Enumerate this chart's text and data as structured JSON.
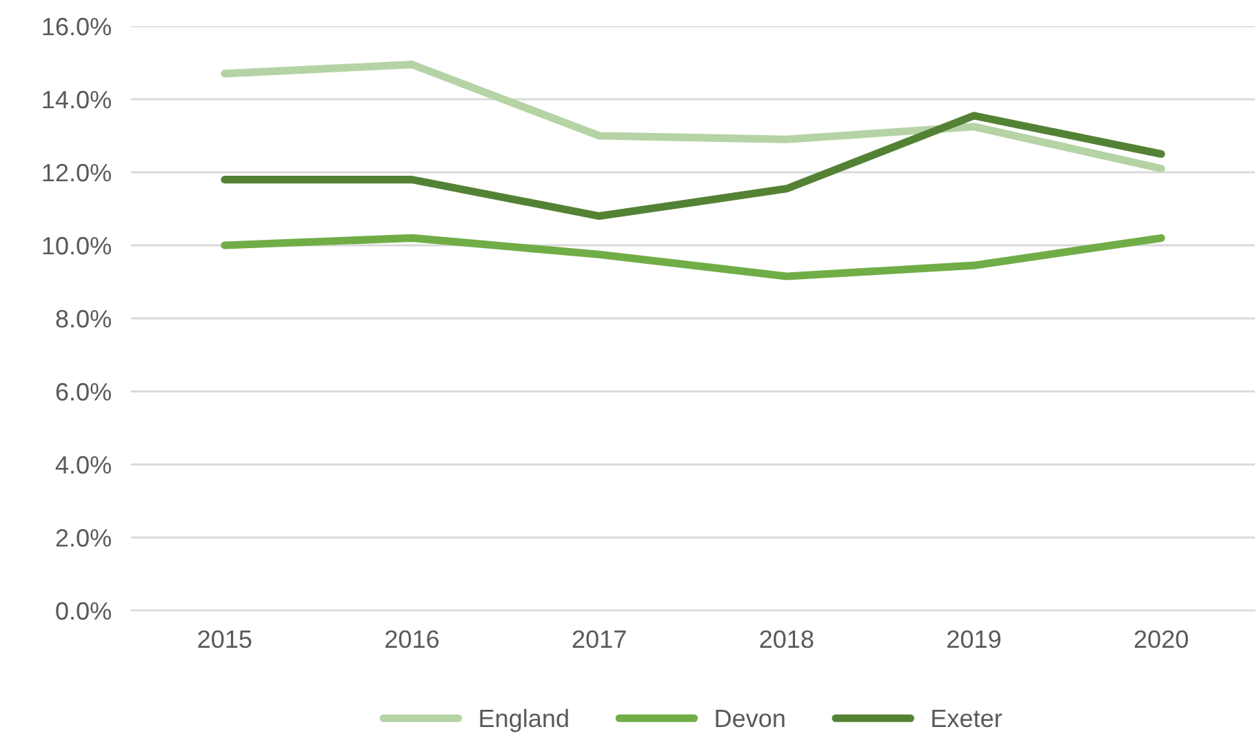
{
  "chart_data": {
    "type": "line",
    "categories": [
      "2015",
      "2016",
      "2017",
      "2018",
      "2019",
      "2020"
    ],
    "series": [
      {
        "name": "England",
        "color": "#b5d3a5",
        "values": [
          14.7,
          14.95,
          13.0,
          12.9,
          13.25,
          12.1
        ]
      },
      {
        "name": "Devon",
        "color": "#70ad47",
        "values": [
          10.0,
          10.2,
          9.75,
          9.15,
          9.45,
          10.2
        ]
      },
      {
        "name": "Exeter",
        "color": "#548235",
        "values": [
          11.8,
          11.8,
          10.8,
          11.55,
          13.55,
          12.5
        ]
      }
    ],
    "ylim": [
      0,
      16
    ],
    "yticks": [
      {
        "value": 0,
        "label": "0.0%"
      },
      {
        "value": 2,
        "label": "2.0%"
      },
      {
        "value": 4,
        "label": "4.0%"
      },
      {
        "value": 6,
        "label": "6.0%"
      },
      {
        "value": 8,
        "label": "8.0%"
      },
      {
        "value": 10,
        "label": "10.0%"
      },
      {
        "value": 12,
        "label": "12.0%"
      },
      {
        "value": 14,
        "label": "14.0%"
      },
      {
        "value": 16,
        "label": "16.0%"
      }
    ],
    "grid": "y",
    "legend": "bottom",
    "line_style": "solid",
    "marker": "none"
  }
}
